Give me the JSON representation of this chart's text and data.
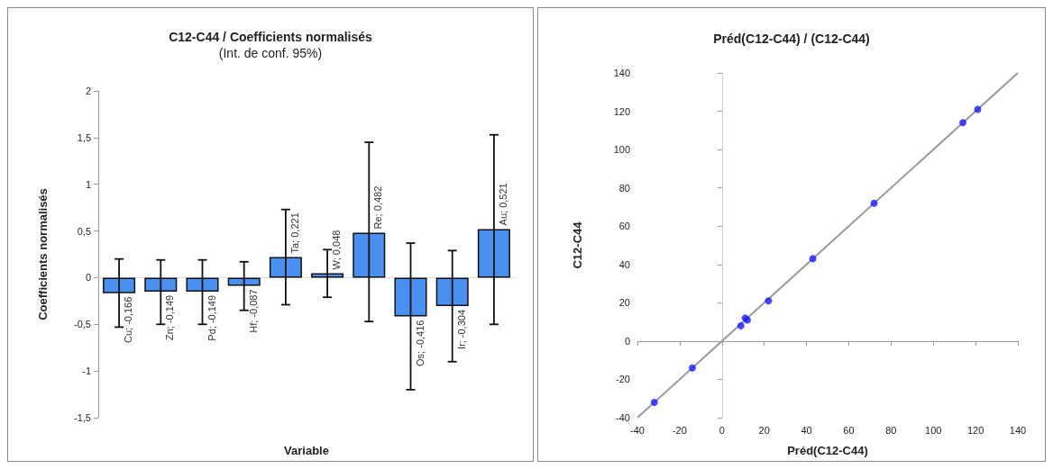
{
  "chart_data": [
    {
      "type": "bar",
      "title": "C12-C44 / Coefficients normalisés",
      "subtitle": "(Int. de conf. 95%)",
      "xlabel": "Variable",
      "ylabel": "Coefficients normalisés",
      "color": "#4a90f0",
      "categories": [
        null,
        null,
        null,
        null,
        null,
        null,
        null,
        null,
        null,
        null
      ],
      "values": [
        -0.166,
        -0.149,
        -0.149,
        -0.087,
        0.221,
        0.048,
        0.482,
        -0.416,
        -0.304,
        0.521
      ],
      "errors": [
        [
          -0.53,
          0.2
        ],
        [
          -0.5,
          0.19
        ],
        [
          -0.5,
          0.19
        ],
        [
          -0.35,
          0.17
        ],
        [
          -0.29,
          0.73
        ],
        [
          -0.21,
          0.3
        ],
        [
          -0.47,
          1.45
        ],
        [
          -1.2,
          0.37
        ],
        [
          -0.9,
          0.29
        ],
        [
          -0.5,
          1.53
        ]
      ],
      "value_labels": [
        "Cu; -0,166",
        "Zn; -0,149",
        "Pd; -0,149",
        "Hf; -0,087",
        "Ta; 0,221",
        "W; 0,048",
        "Re; 0,482",
        "Os; -0,416",
        "Ir; -0,304",
        "Au; 0,521"
      ],
      "ylim": [
        -1.5,
        2
      ],
      "yticks": [
        {
          "value": -1.5,
          "label": "-1,5"
        },
        -1,
        {
          "value": -0.5,
          "label": "-0,5"
        },
        0,
        {
          "value": 0.5,
          "label": "0,5"
        },
        1,
        {
          "value": 1.5,
          "label": "1,5"
        },
        2
      ]
    },
    {
      "type": "scatter",
      "title": "Préd(C12-C44) / (C12-C44)",
      "xlabel": "Préd(C12-C44)",
      "ylabel": "C12-C44",
      "series": [
        {
          "type": "line",
          "marker": "none",
          "color": "#999999",
          "x": [
            -40,
            140
          ],
          "values": [
            -40,
            140
          ]
        },
        {
          "type": "scatter",
          "marker": "circle",
          "color": "#1a1aff",
          "x": [
            -32,
            -14,
            9,
            11,
            12,
            22,
            43,
            72,
            114,
            121
          ],
          "values": [
            -32,
            -14,
            8,
            12,
            11,
            21,
            43,
            72,
            114,
            121
          ]
        }
      ],
      "xlim": [
        -40,
        140
      ],
      "xticks": [
        -40,
        -20,
        0,
        20,
        40,
        60,
        80,
        100,
        120,
        140
      ],
      "ylim": [
        -40,
        140
      ],
      "yticks": [
        -40,
        -20,
        0,
        20,
        40,
        60,
        80,
        100,
        120,
        140
      ]
    }
  ]
}
